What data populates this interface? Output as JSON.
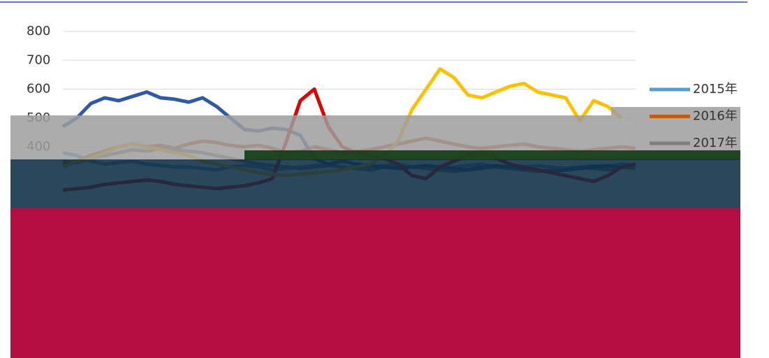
{
  "chart_data": {
    "type": "line",
    "ylim": [
      0,
      800
    ],
    "yticks": [
      400,
      500,
      600,
      700,
      800
    ],
    "grid": true,
    "series": [
      {
        "name": "2015年",
        "color": "#5b9bd5",
        "values": [
          380,
          370,
          350,
          340,
          345,
          350,
          340,
          335,
          330,
          330,
          325,
          320,
          330,
          335,
          330,
          320,
          325,
          330,
          335,
          340,
          330,
          325,
          330,
          335,
          340,
          330,
          325,
          320,
          330,
          335,
          340,
          330,
          325,
          330,
          335,
          330,
          325,
          330,
          335,
          330,
          340,
          335
        ]
      },
      {
        "name": "2016年",
        "color": "#c55a11",
        "values": [
          340,
          350,
          370,
          385,
          400,
          410,
          400,
          405,
          395,
          410,
          420,
          415,
          405,
          400,
          405,
          395,
          380,
          385,
          400,
          390,
          380,
          385,
          390,
          400,
          410,
          420,
          430,
          420,
          410,
          400,
          395,
          400,
          405,
          410,
          400,
          395,
          390,
          385,
          390,
          395,
          400,
          395
        ]
      },
      {
        "name": "2017年",
        "color": "#7f7f7f",
        "values": [
          350,
          345,
          360,
          370,
          380,
          390,
          385,
          395,
          390,
          385,
          380,
          370,
          360,
          350,
          340,
          335,
          330,
          325,
          330,
          335,
          330,
          325,
          320,
          330,
          335,
          330,
          325,
          320,
          315,
          320,
          325,
          330,
          325,
          320,
          315,
          320,
          325,
          330,
          325,
          320,
          330,
          325
        ]
      },
      {
        "color": "#2e59a8",
        "values": [
          470,
          500,
          550,
          570,
          560,
          575,
          590,
          570,
          565,
          555,
          570,
          540,
          500,
          460,
          455,
          465,
          460,
          440,
          360,
          340,
          350,
          340,
          335,
          330,
          325,
          330,
          335,
          330,
          325,
          320,
          330,
          335,
          330,
          325,
          320,
          315,
          320,
          325,
          330,
          335,
          330,
          340
        ]
      },
      {
        "color": "#e00000",
        "values": [
          250,
          255,
          260,
          270,
          275,
          280,
          285,
          280,
          270,
          265,
          260,
          255,
          260,
          265,
          275,
          290,
          420,
          560,
          600,
          470,
          400,
          380,
          370,
          360,
          340,
          300,
          290,
          330,
          350,
          370,
          380,
          360,
          340,
          330,
          320,
          310,
          300,
          290,
          280,
          300,
          330,
          340
        ]
      },
      {
        "color": "#ffc000",
        "values": [
          330,
          350,
          360,
          380,
          400,
          410,
          400,
          390,
          380,
          370,
          350,
          340,
          330,
          320,
          310,
          305,
          300,
          305,
          310,
          315,
          320,
          330,
          340,
          370,
          420,
          530,
          600,
          670,
          640,
          580,
          570,
          590,
          610,
          620,
          590,
          580,
          570,
          490,
          560,
          540,
          500,
          null
        ]
      }
    ]
  }
}
